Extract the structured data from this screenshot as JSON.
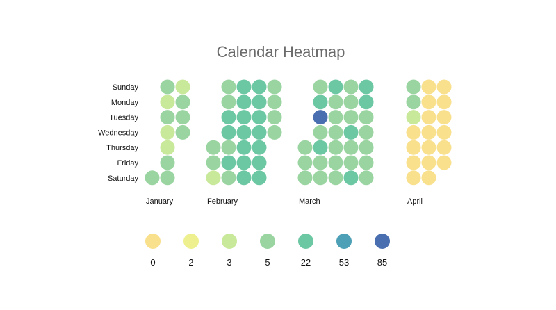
{
  "chart_data": {
    "type": "heatmap",
    "title": "Calendar Heatmap",
    "day_labels": [
      "Sunday",
      "Monday",
      "Tuesday",
      "Wednesday",
      "Thursday",
      "Friday",
      "Saturday"
    ],
    "months": [
      {
        "label": "January",
        "weeks": [
          [
            null,
            null,
            null,
            null,
            null,
            null,
            5
          ],
          [
            5,
            3,
            5,
            3,
            3,
            5,
            5
          ],
          [
            3,
            5,
            5,
            5,
            null,
            null,
            null
          ]
        ]
      },
      {
        "label": "February",
        "weeks": [
          [
            null,
            null,
            null,
            null,
            5,
            5,
            3
          ],
          [
            5,
            5,
            22,
            22,
            5,
            22,
            5
          ],
          [
            22,
            22,
            22,
            22,
            22,
            22,
            22
          ],
          [
            22,
            22,
            22,
            22,
            22,
            22,
            22
          ],
          [
            5,
            5,
            5,
            5,
            null,
            null,
            null
          ]
        ]
      },
      {
        "label": "March",
        "weeks": [
          [
            null,
            null,
            null,
            null,
            5,
            5,
            5
          ],
          [
            5,
            22,
            85,
            5,
            22,
            5,
            5
          ],
          [
            22,
            5,
            5,
            5,
            5,
            5,
            5
          ],
          [
            5,
            5,
            5,
            22,
            5,
            5,
            22
          ],
          [
            22,
            22,
            5,
            5,
            5,
            5,
            5
          ]
        ]
      },
      {
        "label": "April",
        "weeks": [
          [
            5,
            5,
            3,
            0,
            0,
            0,
            0
          ],
          [
            0,
            0,
            0,
            0,
            0,
            0,
            0
          ],
          [
            0,
            0,
            0,
            0,
            0,
            0,
            null
          ]
        ]
      }
    ],
    "legend": {
      "values": [
        "0",
        "2",
        "3",
        "5",
        "22",
        "53",
        "85"
      ],
      "colors": [
        "#f9e08d",
        "#eef08f",
        "#c8e89a",
        "#99d4a1",
        "#6cc7a3",
        "#4da0b5",
        "#4a6fb0"
      ]
    }
  }
}
